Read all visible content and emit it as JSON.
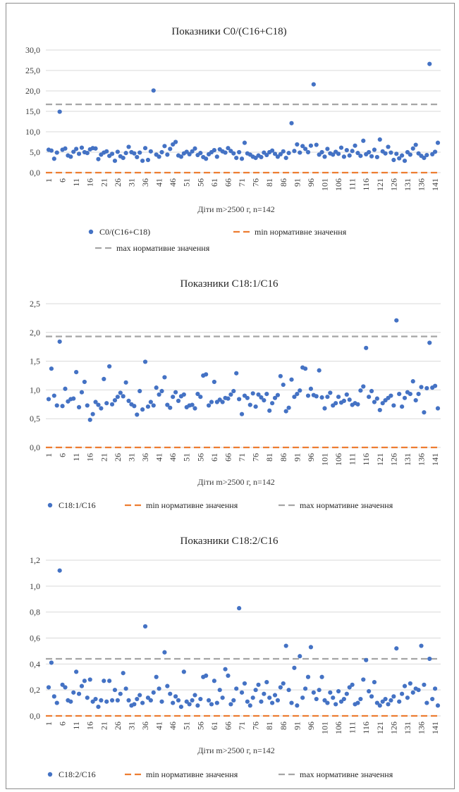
{
  "chart_data": [
    {
      "type": "scatter",
      "title": "Показники C0/(C16+C18)",
      "xlabel": "Діти m>2500 г, n=142",
      "ylabel": "",
      "ylim": [
        0,
        30
      ],
      "yticks": [
        "0,0",
        "5,0",
        "10,0",
        "15,0",
        "20,0",
        "25,0",
        "30,0"
      ],
      "ytick_values": [
        0,
        5,
        10,
        15,
        20,
        25,
        30
      ],
      "xlim": [
        1,
        142
      ],
      "xticks": [
        1,
        6,
        11,
        16,
        21,
        26,
        31,
        36,
        41,
        46,
        51,
        56,
        61,
        66,
        71,
        76,
        81,
        86,
        91,
        96,
        101,
        106,
        111,
        116,
        121,
        126,
        131,
        136,
        141
      ],
      "grid": true,
      "legend_position": "bottom",
      "series_points_name": "C0/(C16+C18)",
      "series_min_name": "min нормативне значення",
      "series_max_name": "max нормативне значення",
      "min_value": 0.0,
      "max_value": 16.7,
      "values": [
        5.6,
        5.4,
        3.4,
        4.9,
        14.9,
        5.6,
        5.9,
        4.2,
        3.9,
        5.1,
        5.8,
        4.6,
        6.1,
        5.0,
        4.8,
        5.7,
        6.0,
        5.9,
        3.3,
        4.4,
        4.9,
        5.2,
        4.1,
        4.6,
        2.9,
        5.1,
        4.0,
        3.6,
        4.8,
        6.3,
        5.0,
        4.7,
        3.8,
        4.9,
        2.9,
        6.0,
        3.1,
        5.2,
        20.1,
        4.4,
        3.9,
        5.0,
        6.5,
        4.4,
        5.8,
        6.9,
        7.5,
        4.2,
        3.9,
        4.7,
        5.1,
        4.5,
        5.2,
        5.9,
        4.3,
        4.8,
        3.8,
        3.4,
        4.5,
        5.0,
        5.5,
        3.9,
        5.7,
        5.2,
        4.9,
        6.0,
        5.3,
        4.7,
        3.6,
        5.0,
        3.4,
        7.3,
        4.7,
        4.4,
        3.9,
        3.6,
        4.2,
        3.8,
        4.9,
        4.3,
        5.0,
        5.4,
        4.6,
        3.9,
        4.5,
        5.2,
        3.6,
        4.8,
        12.1,
        5.3,
        6.9,
        4.9,
        6.5,
        5.8,
        5.0,
        6.6,
        21.6,
        6.8,
        4.4,
        5.0,
        3.9,
        5.8,
        4.7,
        4.4,
        5.1,
        4.6,
        6.1,
        3.9,
        5.5,
        4.2,
        5.3,
        6.6,
        4.8,
        4.1,
        7.8,
        4.5,
        5.0,
        4.0,
        5.6,
        3.8,
        8.1,
        5.2,
        4.7,
        6.3,
        4.9,
        3.1,
        4.6,
        3.5,
        4.2,
        2.9,
        5.0,
        4.4,
        5.9,
        6.8,
        4.7,
        4.1,
        3.6,
        4.3,
        26.6,
        4.5,
        5.1,
        7.3
      ]
    },
    {
      "type": "scatter",
      "title": "Показники C18:1/C16",
      "xlabel": "Діти m>2500 г, n=142",
      "ylabel": "",
      "ylim": [
        0,
        2.5
      ],
      "yticks": [
        "0,0",
        "0,5",
        "1,0",
        "1,5",
        "2,0",
        "2,5"
      ],
      "ytick_values": [
        0,
        0.5,
        1.0,
        1.5,
        2.0,
        2.5
      ],
      "xlim": [
        1,
        142
      ],
      "xticks": [
        1,
        6,
        11,
        16,
        21,
        26,
        31,
        36,
        41,
        46,
        51,
        56,
        61,
        66,
        71,
        76,
        81,
        86,
        91,
        96,
        101,
        106,
        111,
        116,
        121,
        126,
        131,
        136,
        141
      ],
      "grid": true,
      "legend_position": "bottom",
      "series_points_name": "C18:1/C16",
      "series_min_name": "min нормативне значення",
      "series_max_name": "max нормативне значення",
      "min_value": 0.0,
      "max_value": 1.93,
      "values": [
        0.84,
        1.37,
        0.9,
        0.73,
        1.84,
        0.72,
        1.02,
        0.8,
        0.84,
        0.85,
        1.31,
        0.7,
        0.96,
        1.14,
        0.73,
        0.48,
        0.58,
        0.79,
        0.74,
        0.68,
        1.19,
        0.77,
        1.41,
        0.75,
        0.82,
        0.88,
        0.95,
        0.89,
        1.13,
        0.81,
        0.75,
        0.72,
        0.57,
        0.98,
        0.66,
        1.49,
        0.71,
        0.79,
        0.73,
        1.04,
        0.92,
        0.98,
        1.22,
        0.74,
        0.69,
        0.88,
        0.96,
        0.81,
        0.89,
        0.92,
        0.7,
        0.73,
        0.74,
        0.68,
        0.93,
        0.88,
        1.25,
        1.27,
        0.73,
        0.79,
        1.14,
        0.79,
        0.83,
        0.79,
        0.86,
        0.85,
        0.92,
        0.98,
        1.29,
        0.84,
        0.58,
        0.9,
        0.86,
        0.74,
        0.94,
        0.71,
        0.92,
        0.87,
        0.82,
        0.93,
        0.64,
        0.77,
        0.86,
        0.91,
        1.24,
        1.09,
        0.63,
        0.69,
        1.18,
        0.88,
        0.93,
        0.99,
        1.39,
        1.37,
        0.9,
        1.02,
        0.91,
        0.89,
        1.34,
        0.87,
        0.68,
        0.88,
        0.95,
        0.73,
        0.77,
        0.88,
        0.78,
        0.81,
        0.92,
        0.83,
        0.74,
        0.77,
        0.75,
        0.99,
        1.06,
        1.73,
        0.88,
        0.98,
        0.79,
        0.85,
        0.65,
        0.77,
        0.82,
        0.86,
        0.9,
        0.73,
        2.21,
        0.93,
        0.71,
        0.86,
        0.96,
        0.93,
        1.15,
        0.82,
        0.93,
        1.05,
        0.61,
        1.03,
        1.82,
        1.04,
        1.07,
        0.68
      ]
    },
    {
      "type": "scatter",
      "title": "Показники C18:2/C16",
      "xlabel": "Діти m>2500 г, n=142",
      "ylabel": "",
      "ylim": [
        0,
        1.2
      ],
      "yticks": [
        "0,0",
        "0,2",
        "0,4",
        "0,6",
        "0,8",
        "1,0",
        "1,2"
      ],
      "ytick_values": [
        0,
        0.2,
        0.4,
        0.6,
        0.8,
        1.0,
        1.2
      ],
      "xlim": [
        1,
        142
      ],
      "xticks": [
        1,
        6,
        11,
        16,
        21,
        26,
        31,
        36,
        41,
        46,
        51,
        56,
        61,
        66,
        71,
        76,
        81,
        86,
        91,
        96,
        101,
        106,
        111,
        116,
        121,
        126,
        131,
        136,
        141
      ],
      "grid": true,
      "legend_position": "bottom",
      "series_points_name": "C18:2/C16",
      "series_min_name": "min нормативне значення",
      "series_max_name": "max нормативне значення",
      "min_value": 0.0,
      "max_value": 0.44,
      "values": [
        0.22,
        0.41,
        0.15,
        0.1,
        1.12,
        0.24,
        0.22,
        0.12,
        0.11,
        0.18,
        0.34,
        0.17,
        0.23,
        0.27,
        0.14,
        0.28,
        0.11,
        0.13,
        0.07,
        0.12,
        0.27,
        0.11,
        0.27,
        0.12,
        0.2,
        0.12,
        0.17,
        0.33,
        0.21,
        0.12,
        0.08,
        0.09,
        0.13,
        0.16,
        0.1,
        0.69,
        0.14,
        0.12,
        0.18,
        0.3,
        0.21,
        0.11,
        0.49,
        0.23,
        0.17,
        0.1,
        0.15,
        0.12,
        0.07,
        0.34,
        0.11,
        0.09,
        0.12,
        0.16,
        0.08,
        0.13,
        0.3,
        0.31,
        0.12,
        0.09,
        0.27,
        0.1,
        0.2,
        0.14,
        0.36,
        0.31,
        0.09,
        0.12,
        0.21,
        0.83,
        0.18,
        0.25,
        0.11,
        0.08,
        0.14,
        0.2,
        0.24,
        0.11,
        0.17,
        0.26,
        0.14,
        0.1,
        0.16,
        0.12,
        0.22,
        0.25,
        0.54,
        0.2,
        0.1,
        0.37,
        0.08,
        0.46,
        0.14,
        0.21,
        0.3,
        0.53,
        0.18,
        0.13,
        0.2,
        0.3,
        0.12,
        0.1,
        0.18,
        0.14,
        0.09,
        0.19,
        0.11,
        0.13,
        0.17,
        0.22,
        0.24,
        0.09,
        0.1,
        0.13,
        0.28,
        0.43,
        0.19,
        0.15,
        0.26,
        0.1,
        0.08,
        0.11,
        0.13,
        0.09,
        0.12,
        0.15,
        0.52,
        0.11,
        0.17,
        0.23,
        0.14,
        0.25,
        0.18,
        0.21,
        0.2,
        0.54,
        0.24,
        0.1,
        0.44,
        0.13,
        0.21,
        0.08
      ]
    }
  ]
}
